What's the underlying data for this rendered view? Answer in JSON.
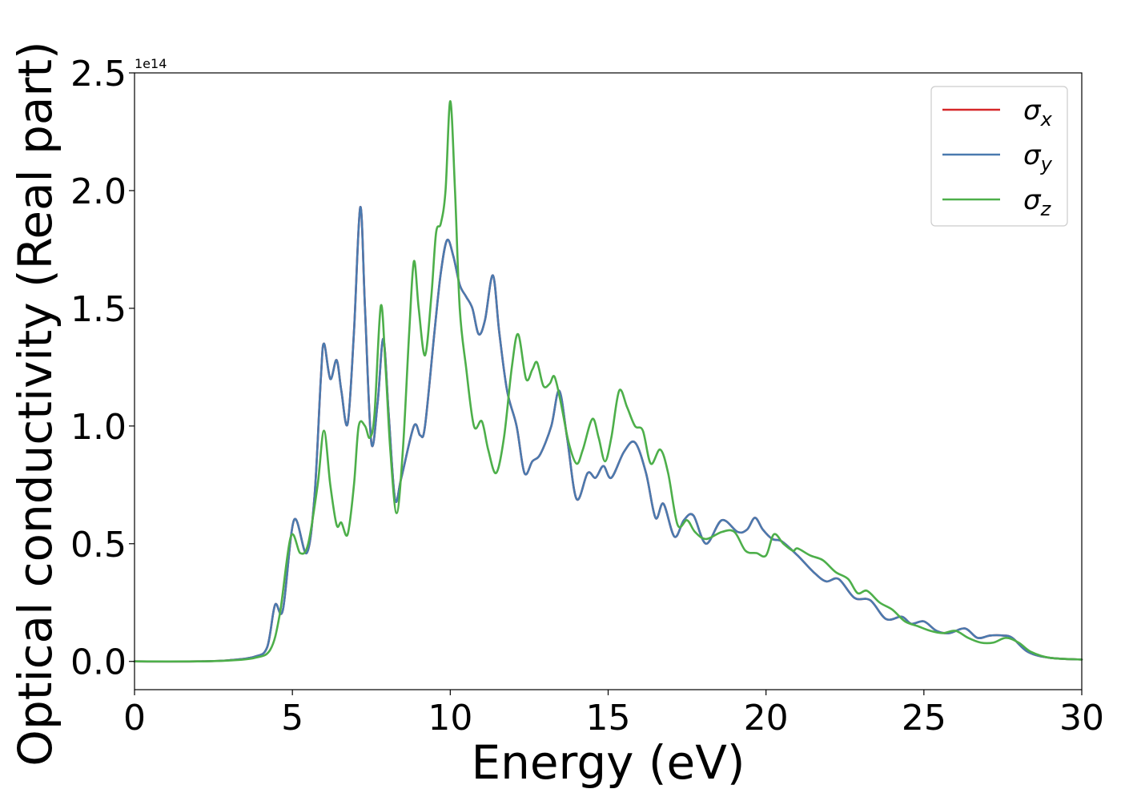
{
  "chart_data": {
    "type": "line",
    "xlabel": "Energy (eV)",
    "ylabel": "Optical conductivity (Real part)",
    "y_offset_label": "1e14",
    "xlim": [
      0,
      30
    ],
    "ylim": [
      -0.12,
      2.5
    ],
    "x_ticks": [
      0,
      5,
      10,
      15,
      20,
      25,
      30
    ],
    "x_tick_labels": [
      "0",
      "5",
      "10",
      "15",
      "20",
      "25",
      "30"
    ],
    "y_ticks": [
      0.0,
      0.5,
      1.0,
      1.5,
      2.0,
      2.5
    ],
    "y_tick_labels": [
      "0.0",
      "0.5",
      "1.0",
      "1.5",
      "2.0",
      "2.5"
    ],
    "grid": false,
    "legend_position": "top-right",
    "series": [
      {
        "name": "σx",
        "label_base": "σ",
        "label_sub": "x",
        "color": "#d62728",
        "points": [
          [
            0,
            0
          ],
          [
            2,
            0.0
          ],
          [
            3,
            0.005
          ],
          [
            3.8,
            0.02
          ],
          [
            4.2,
            0.06
          ],
          [
            4.45,
            0.24
          ],
          [
            4.7,
            0.22
          ],
          [
            5.05,
            0.6
          ],
          [
            5.45,
            0.46
          ],
          [
            5.7,
            0.7
          ],
          [
            5.9,
            1.2
          ],
          [
            6.0,
            1.35
          ],
          [
            6.2,
            1.2
          ],
          [
            6.4,
            1.28
          ],
          [
            6.55,
            1.15
          ],
          [
            6.75,
            1.01
          ],
          [
            6.95,
            1.4
          ],
          [
            7.15,
            1.93
          ],
          [
            7.3,
            1.5
          ],
          [
            7.5,
            0.93
          ],
          [
            7.7,
            1.1
          ],
          [
            7.88,
            1.37
          ],
          [
            8.05,
            1.05
          ],
          [
            8.25,
            0.69
          ],
          [
            8.45,
            0.78
          ],
          [
            8.85,
            1.0
          ],
          [
            9.05,
            0.96
          ],
          [
            9.2,
            1.0
          ],
          [
            9.5,
            1.4
          ],
          [
            9.7,
            1.65
          ],
          [
            9.9,
            1.79
          ],
          [
            10.1,
            1.72
          ],
          [
            10.3,
            1.6
          ],
          [
            10.5,
            1.55
          ],
          [
            10.7,
            1.5
          ],
          [
            10.9,
            1.39
          ],
          [
            11.1,
            1.45
          ],
          [
            11.35,
            1.64
          ],
          [
            11.55,
            1.4
          ],
          [
            11.8,
            1.15
          ],
          [
            12.1,
            1.0
          ],
          [
            12.35,
            0.8
          ],
          [
            12.6,
            0.85
          ],
          [
            12.85,
            0.88
          ],
          [
            13.2,
            1.0
          ],
          [
            13.45,
            1.15
          ],
          [
            13.7,
            0.95
          ],
          [
            14.0,
            0.69
          ],
          [
            14.35,
            0.8
          ],
          [
            14.6,
            0.78
          ],
          [
            14.85,
            0.83
          ],
          [
            15.1,
            0.78
          ],
          [
            15.5,
            0.89
          ],
          [
            15.85,
            0.93
          ],
          [
            16.2,
            0.8
          ],
          [
            16.5,
            0.61
          ],
          [
            16.75,
            0.67
          ],
          [
            17.1,
            0.53
          ],
          [
            17.4,
            0.6
          ],
          [
            17.7,
            0.62
          ],
          [
            18.1,
            0.5
          ],
          [
            18.6,
            0.6
          ],
          [
            19.1,
            0.55
          ],
          [
            19.4,
            0.56
          ],
          [
            19.65,
            0.61
          ],
          [
            19.9,
            0.56
          ],
          [
            20.2,
            0.52
          ],
          [
            20.5,
            0.51
          ],
          [
            21.0,
            0.45
          ],
          [
            21.5,
            0.38
          ],
          [
            21.9,
            0.34
          ],
          [
            22.3,
            0.35
          ],
          [
            22.8,
            0.27
          ],
          [
            23.3,
            0.26
          ],
          [
            23.8,
            0.18
          ],
          [
            24.3,
            0.19
          ],
          [
            24.6,
            0.16
          ],
          [
            25.0,
            0.17
          ],
          [
            25.4,
            0.13
          ],
          [
            25.8,
            0.12
          ],
          [
            26.3,
            0.14
          ],
          [
            26.7,
            0.1
          ],
          [
            27.1,
            0.11
          ],
          [
            27.5,
            0.11
          ],
          [
            27.8,
            0.1
          ],
          [
            28.3,
            0.04
          ],
          [
            29.0,
            0.015
          ],
          [
            30.0,
            0.008
          ]
        ]
      },
      {
        "name": "σy",
        "label_base": "σ",
        "label_sub": "y",
        "color": "#4a7aaf",
        "points": [
          [
            0,
            0
          ],
          [
            2,
            0.0
          ],
          [
            3,
            0.005
          ],
          [
            3.8,
            0.02
          ],
          [
            4.2,
            0.06
          ],
          [
            4.45,
            0.24
          ],
          [
            4.7,
            0.22
          ],
          [
            5.05,
            0.6
          ],
          [
            5.45,
            0.46
          ],
          [
            5.7,
            0.7
          ],
          [
            5.9,
            1.2
          ],
          [
            6.0,
            1.35
          ],
          [
            6.2,
            1.2
          ],
          [
            6.4,
            1.28
          ],
          [
            6.55,
            1.15
          ],
          [
            6.75,
            1.01
          ],
          [
            6.95,
            1.4
          ],
          [
            7.15,
            1.93
          ],
          [
            7.3,
            1.5
          ],
          [
            7.5,
            0.93
          ],
          [
            7.7,
            1.1
          ],
          [
            7.88,
            1.37
          ],
          [
            8.05,
            1.05
          ],
          [
            8.25,
            0.69
          ],
          [
            8.45,
            0.78
          ],
          [
            8.85,
            1.0
          ],
          [
            9.05,
            0.96
          ],
          [
            9.2,
            1.0
          ],
          [
            9.5,
            1.4
          ],
          [
            9.7,
            1.65
          ],
          [
            9.9,
            1.79
          ],
          [
            10.1,
            1.72
          ],
          [
            10.3,
            1.6
          ],
          [
            10.5,
            1.55
          ],
          [
            10.7,
            1.5
          ],
          [
            10.9,
            1.39
          ],
          [
            11.1,
            1.45
          ],
          [
            11.35,
            1.64
          ],
          [
            11.55,
            1.4
          ],
          [
            11.8,
            1.15
          ],
          [
            12.1,
            1.0
          ],
          [
            12.35,
            0.8
          ],
          [
            12.6,
            0.85
          ],
          [
            12.85,
            0.88
          ],
          [
            13.2,
            1.0
          ],
          [
            13.45,
            1.15
          ],
          [
            13.7,
            0.95
          ],
          [
            14.0,
            0.69
          ],
          [
            14.35,
            0.8
          ],
          [
            14.6,
            0.78
          ],
          [
            14.85,
            0.83
          ],
          [
            15.1,
            0.78
          ],
          [
            15.5,
            0.89
          ],
          [
            15.85,
            0.93
          ],
          [
            16.2,
            0.8
          ],
          [
            16.5,
            0.61
          ],
          [
            16.75,
            0.67
          ],
          [
            17.1,
            0.53
          ],
          [
            17.4,
            0.6
          ],
          [
            17.7,
            0.62
          ],
          [
            18.1,
            0.5
          ],
          [
            18.6,
            0.6
          ],
          [
            19.1,
            0.55
          ],
          [
            19.4,
            0.56
          ],
          [
            19.65,
            0.61
          ],
          [
            19.9,
            0.56
          ],
          [
            20.2,
            0.52
          ],
          [
            20.5,
            0.51
          ],
          [
            21.0,
            0.45
          ],
          [
            21.5,
            0.38
          ],
          [
            21.9,
            0.34
          ],
          [
            22.3,
            0.35
          ],
          [
            22.8,
            0.27
          ],
          [
            23.3,
            0.26
          ],
          [
            23.8,
            0.18
          ],
          [
            24.3,
            0.19
          ],
          [
            24.6,
            0.16
          ],
          [
            25.0,
            0.17
          ],
          [
            25.4,
            0.13
          ],
          [
            25.8,
            0.12
          ],
          [
            26.3,
            0.14
          ],
          [
            26.7,
            0.1
          ],
          [
            27.1,
            0.11
          ],
          [
            27.5,
            0.11
          ],
          [
            27.8,
            0.1
          ],
          [
            28.3,
            0.04
          ],
          [
            29.0,
            0.015
          ],
          [
            30.0,
            0.008
          ]
        ]
      },
      {
        "name": "σz",
        "label_base": "σ",
        "label_sub": "z",
        "color": "#4daf4a",
        "points": [
          [
            0,
            0
          ],
          [
            2,
            0.0
          ],
          [
            3,
            0.004
          ],
          [
            3.8,
            0.015
          ],
          [
            4.3,
            0.05
          ],
          [
            4.6,
            0.2
          ],
          [
            4.95,
            0.53
          ],
          [
            5.25,
            0.46
          ],
          [
            5.5,
            0.5
          ],
          [
            5.8,
            0.75
          ],
          [
            6.0,
            0.98
          ],
          [
            6.2,
            0.75
          ],
          [
            6.4,
            0.58
          ],
          [
            6.55,
            0.59
          ],
          [
            6.75,
            0.54
          ],
          [
            6.95,
            0.75
          ],
          [
            7.1,
            1.0
          ],
          [
            7.3,
            1.0
          ],
          [
            7.45,
            0.95
          ],
          [
            7.6,
            1.05
          ],
          [
            7.8,
            1.51
          ],
          [
            7.95,
            1.25
          ],
          [
            8.1,
            0.9
          ],
          [
            8.3,
            0.63
          ],
          [
            8.5,
            0.9
          ],
          [
            8.7,
            1.4
          ],
          [
            8.85,
            1.7
          ],
          [
            9.0,
            1.5
          ],
          [
            9.2,
            1.3
          ],
          [
            9.4,
            1.55
          ],
          [
            9.55,
            1.82
          ],
          [
            9.7,
            1.86
          ],
          [
            9.85,
            2.0
          ],
          [
            10.0,
            2.38
          ],
          [
            10.15,
            2.0
          ],
          [
            10.3,
            1.5
          ],
          [
            10.5,
            1.25
          ],
          [
            10.75,
            1.0
          ],
          [
            11.0,
            1.02
          ],
          [
            11.2,
            0.9
          ],
          [
            11.45,
            0.8
          ],
          [
            11.7,
            0.95
          ],
          [
            11.95,
            1.25
          ],
          [
            12.15,
            1.39
          ],
          [
            12.4,
            1.2
          ],
          [
            12.6,
            1.24
          ],
          [
            12.75,
            1.27
          ],
          [
            12.95,
            1.17
          ],
          [
            13.15,
            1.18
          ],
          [
            13.3,
            1.21
          ],
          [
            13.5,
            1.1
          ],
          [
            13.75,
            0.93
          ],
          [
            14.0,
            0.84
          ],
          [
            14.2,
            0.9
          ],
          [
            14.5,
            1.03
          ],
          [
            14.7,
            0.95
          ],
          [
            14.9,
            0.85
          ],
          [
            15.1,
            0.95
          ],
          [
            15.35,
            1.15
          ],
          [
            15.6,
            1.08
          ],
          [
            15.85,
            1.0
          ],
          [
            16.1,
            0.98
          ],
          [
            16.35,
            0.84
          ],
          [
            16.65,
            0.9
          ],
          [
            16.9,
            0.8
          ],
          [
            17.2,
            0.58
          ],
          [
            17.5,
            0.6
          ],
          [
            17.75,
            0.55
          ],
          [
            18.1,
            0.52
          ],
          [
            18.6,
            0.55
          ],
          [
            19.0,
            0.55
          ],
          [
            19.35,
            0.47
          ],
          [
            19.7,
            0.46
          ],
          [
            20.0,
            0.45
          ],
          [
            20.25,
            0.54
          ],
          [
            20.55,
            0.5
          ],
          [
            20.85,
            0.47
          ],
          [
            21.0,
            0.48
          ],
          [
            21.4,
            0.45
          ],
          [
            21.8,
            0.43
          ],
          [
            22.2,
            0.38
          ],
          [
            22.6,
            0.35
          ],
          [
            22.9,
            0.29
          ],
          [
            23.2,
            0.3
          ],
          [
            23.6,
            0.25
          ],
          [
            24.0,
            0.22
          ],
          [
            24.4,
            0.17
          ],
          [
            24.8,
            0.15
          ],
          [
            25.2,
            0.13
          ],
          [
            25.6,
            0.12
          ],
          [
            26.0,
            0.13
          ],
          [
            26.4,
            0.1
          ],
          [
            26.8,
            0.08
          ],
          [
            27.2,
            0.08
          ],
          [
            27.6,
            0.1
          ],
          [
            28.0,
            0.08
          ],
          [
            28.4,
            0.04
          ],
          [
            29.0,
            0.015
          ],
          [
            30.0,
            0.008
          ]
        ]
      }
    ]
  }
}
